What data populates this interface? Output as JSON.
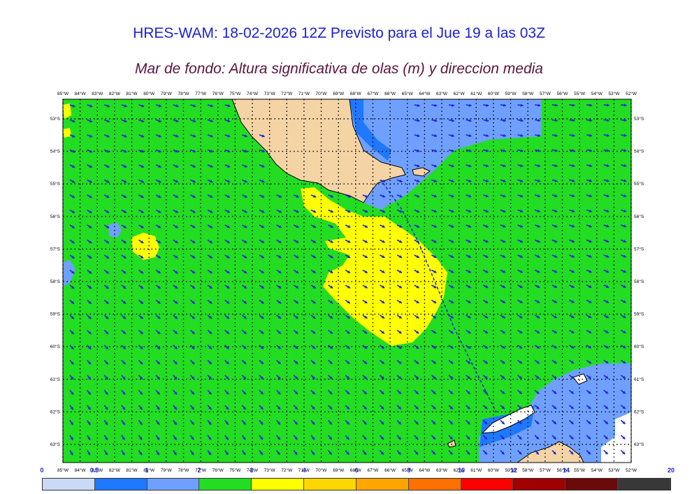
{
  "title": "HRES-WAM: 18-02-2026 12Z Previsto para el Jue 19 a las 03Z",
  "subtitle": "Mar de fondo: Altura significativa de olas (m) y direccion media",
  "lon_labels": [
    "85°W",
    "84°W",
    "83°W",
    "82°W",
    "81°W",
    "80°W",
    "79°W",
    "78°W",
    "77°W",
    "76°W",
    "75°W",
    "74°W",
    "73°W",
    "72°W",
    "71°W",
    "70°W",
    "69°W",
    "68°W",
    "67°W",
    "66°W",
    "65°W",
    "64°W",
    "63°W",
    "62°W",
    "61°W",
    "60°W",
    "59°W",
    "58°W",
    "57°W",
    "56°W",
    "55°W",
    "54°W",
    "53°W",
    "52°W"
  ],
  "lat_labels": [
    "53°S",
    "54°S",
    "55°S",
    "56°S",
    "57°S",
    "58°S",
    "59°S",
    "60°S",
    "61°S",
    "62°S",
    "63°S"
  ],
  "colorbar": {
    "labels": [
      "0",
      "0.5",
      "1",
      "2",
      "3",
      "4",
      "6",
      "8",
      "10",
      "12",
      "14",
      "20"
    ],
    "colors": [
      "#c8daf5",
      "#1f78ff",
      "#6fa0ff",
      "#22dd22",
      "#ffff00",
      "#ffd700",
      "#ffa500",
      "#ff7000",
      "#ff0000",
      "#a00000",
      "#6b0a0a",
      "#383838"
    ]
  },
  "map_colors": {
    "calm_blue": "#6fa0ff",
    "deep_blue": "#1f78ff",
    "pale_blue": "#c8daf5",
    "green": "#22dd22",
    "yellow": "#ffff00",
    "land": "#f4d3a5",
    "arrow": "#1a22d6"
  }
}
